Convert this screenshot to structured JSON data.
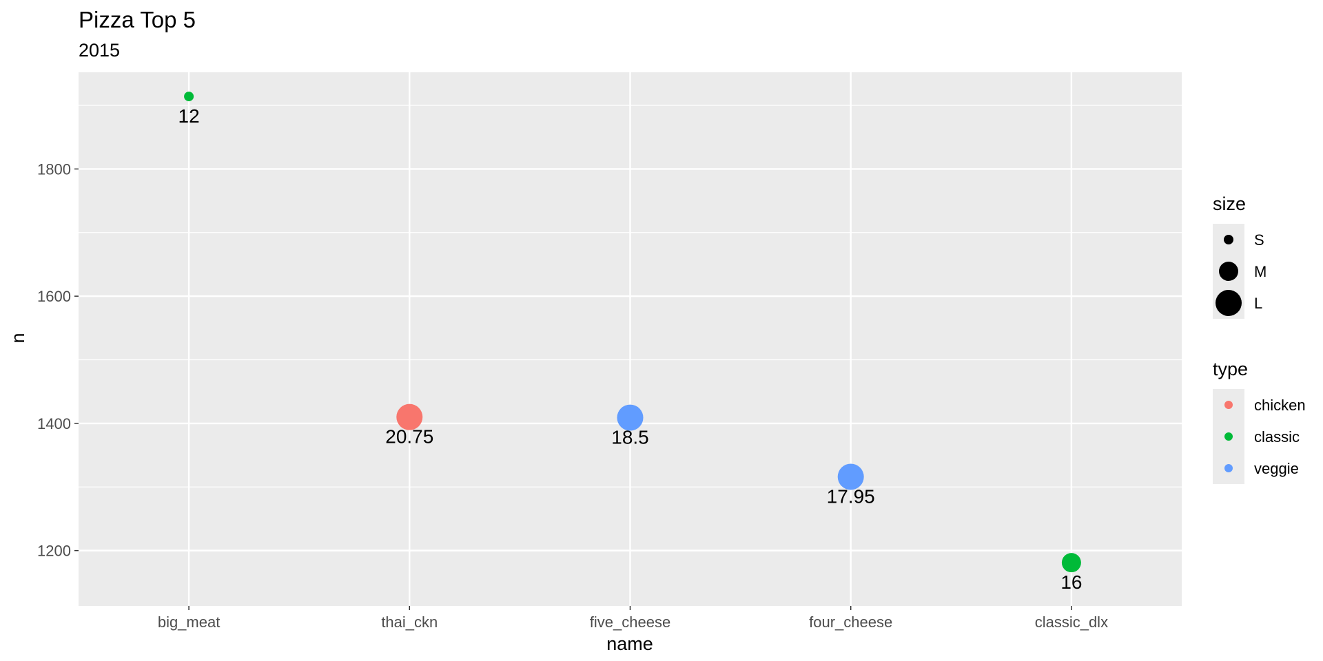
{
  "chart_data": {
    "type": "scatter",
    "title": "Pizza Top 5",
    "subtitle": "2015",
    "xlabel": "name",
    "ylabel": "n",
    "categories": [
      "big_meat",
      "thai_ckn",
      "five_cheese",
      "four_cheese",
      "classic_dlx"
    ],
    "y_ticks": [
      1200,
      1400,
      1600,
      1800
    ],
    "ylim": [
      1113,
      1952
    ],
    "grid": true,
    "legend_position": "right",
    "points": [
      {
        "name": "big_meat",
        "n": 1914,
        "size": "S",
        "type": "classic",
        "label": "12"
      },
      {
        "name": "thai_ckn",
        "n": 1410,
        "size": "L",
        "type": "chicken",
        "label": "20.75"
      },
      {
        "name": "five_cheese",
        "n": 1409,
        "size": "L",
        "type": "veggie",
        "label": "18.5"
      },
      {
        "name": "four_cheese",
        "n": 1316,
        "size": "L",
        "type": "veggie",
        "label": "17.95"
      },
      {
        "name": "classic_dlx",
        "n": 1181,
        "size": "M",
        "type": "classic",
        "label": "16"
      }
    ],
    "size_legend": {
      "title": "size",
      "items": [
        "S",
        "M",
        "L"
      ]
    },
    "type_legend": {
      "title": "type",
      "items": [
        {
          "label": "chicken",
          "color": "#F8766D"
        },
        {
          "label": "classic",
          "color": "#00BA38"
        },
        {
          "label": "veggie",
          "color": "#619CFF"
        }
      ]
    }
  }
}
